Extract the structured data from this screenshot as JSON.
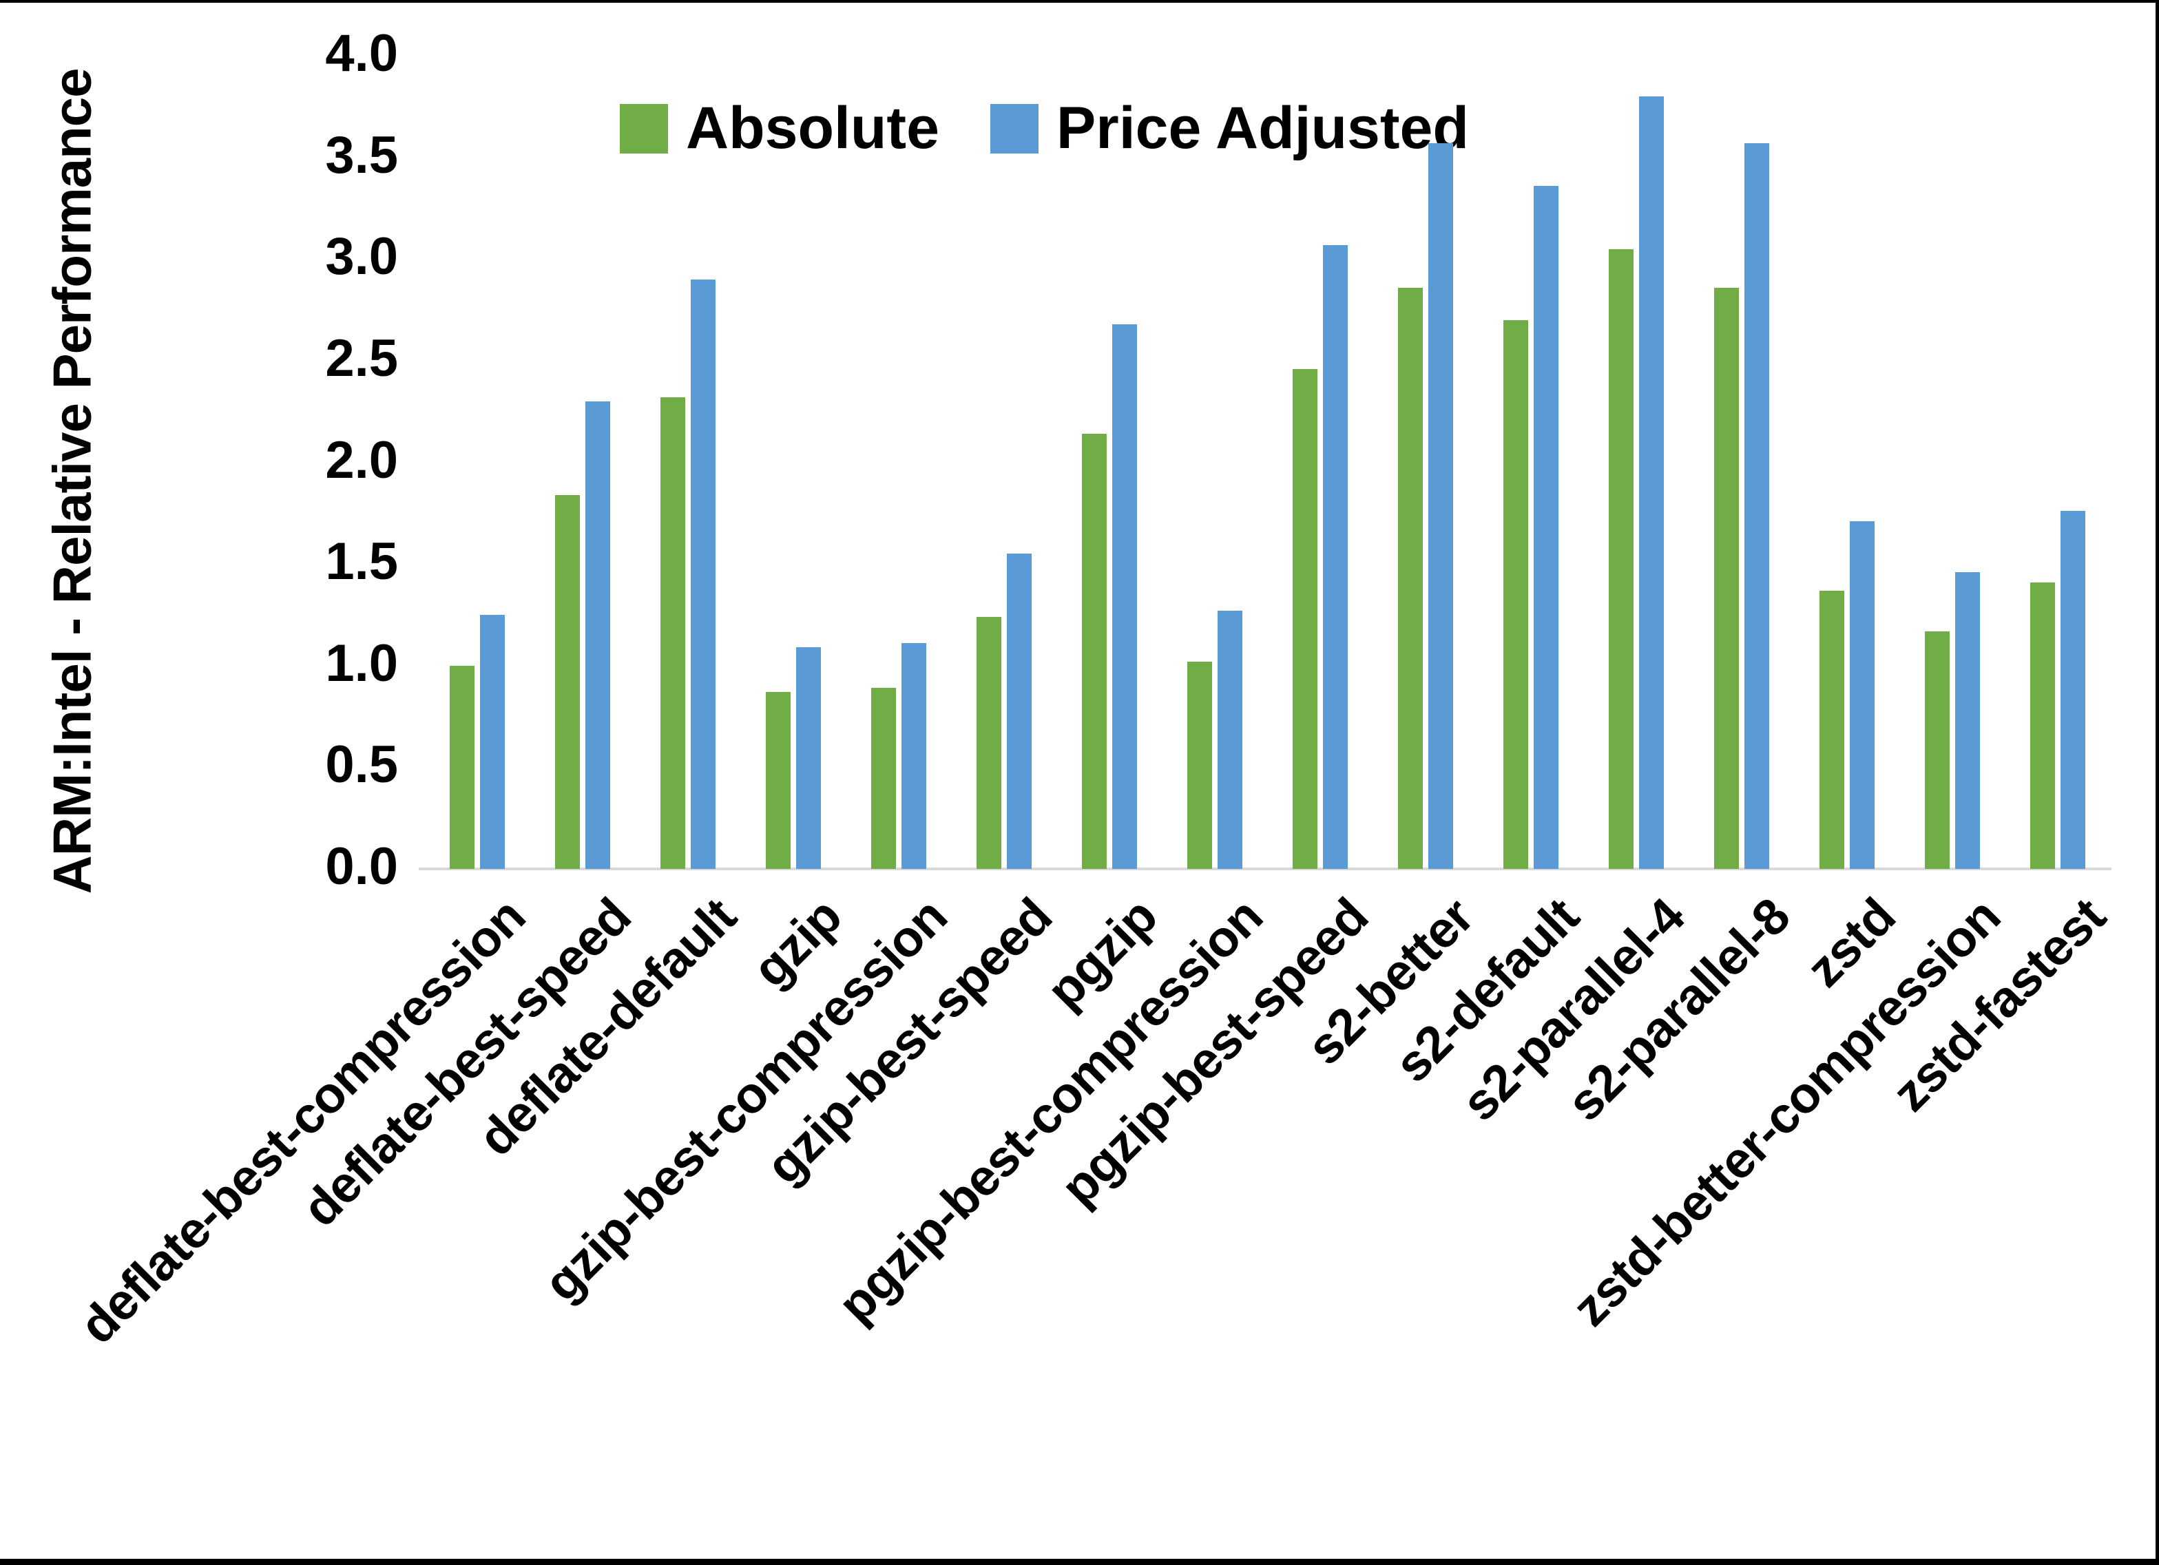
{
  "figure": {
    "background": "#ffffff",
    "border_color": "#000000",
    "axis_line_color": "#d9d9d9",
    "text_color": "#000000"
  },
  "chart_data": {
    "type": "bar",
    "title": "",
    "xlabel": "",
    "ylabel": "ARM:Intel - Relative Performance",
    "ylim": [
      0,
      4.0
    ],
    "ytick_labels": [
      "0.0",
      "0.5",
      "1.0",
      "1.5",
      "2.0",
      "2.5",
      "3.0",
      "3.5",
      "4.0"
    ],
    "grid": false,
    "legend_position": "top-center",
    "categories": [
      "deflate-best-compression",
      "deflate-best-speed",
      "deflate-default",
      "gzip",
      "gzip-best-compression",
      "gzip-best-speed",
      "pgzip",
      "pgzip-best-compression",
      "pgzip-best-speed",
      "s2-better",
      "s2-default",
      "s2-parallel-4",
      "s2-parallel-8",
      "zstd",
      "zstd-better-compression",
      "zstd-fastest"
    ],
    "series": [
      {
        "name": "Absolute",
        "color": "#70AD47",
        "values": [
          1.0,
          1.84,
          2.32,
          0.87,
          0.89,
          1.24,
          2.14,
          1.02,
          2.46,
          2.86,
          2.7,
          3.05,
          2.86,
          1.37,
          1.17,
          1.41
        ]
      },
      {
        "name": "Price Adjusted",
        "color": "#5B9BD5",
        "values": [
          1.25,
          2.3,
          2.9,
          1.09,
          1.11,
          1.55,
          2.68,
          1.27,
          3.07,
          3.57,
          3.36,
          3.8,
          3.57,
          1.71,
          1.46,
          1.76
        ]
      }
    ]
  }
}
